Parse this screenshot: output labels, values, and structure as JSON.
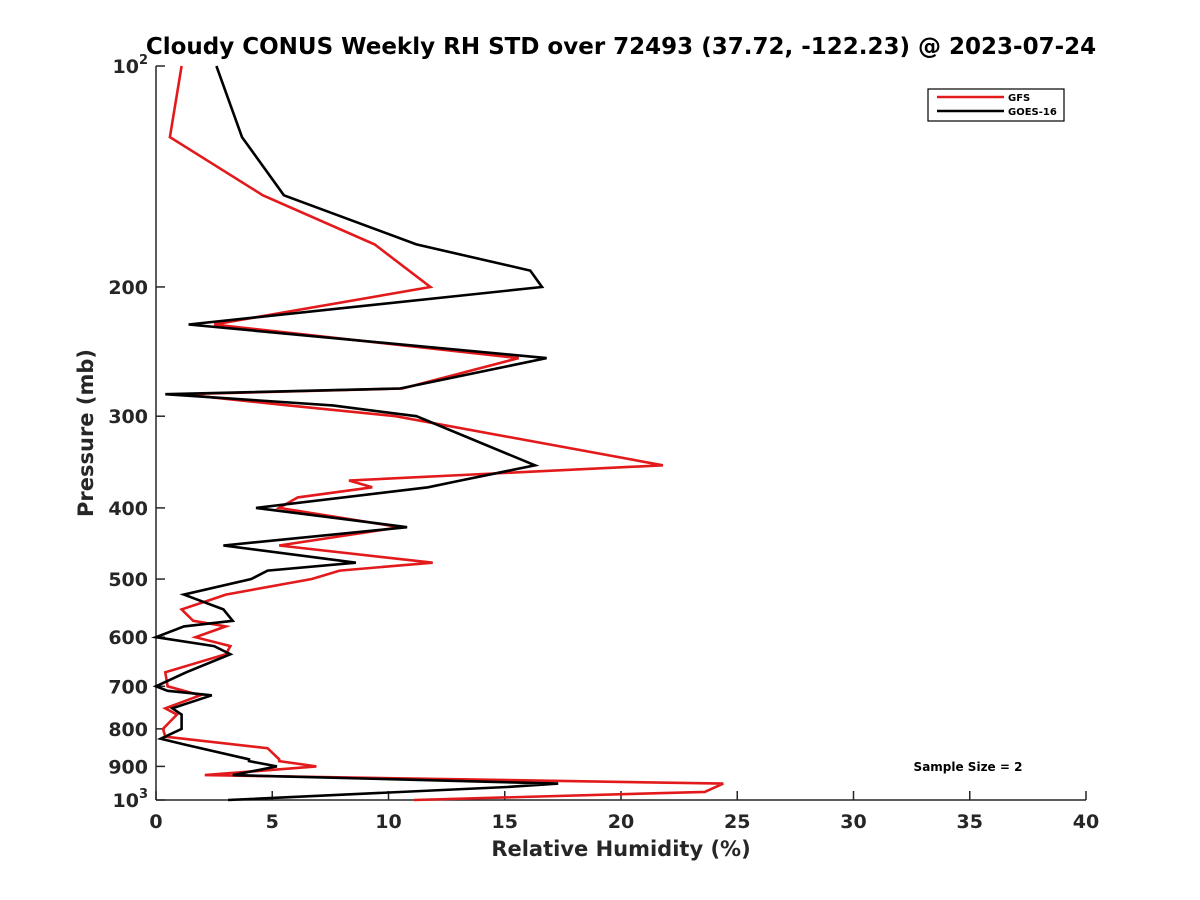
{
  "chart_data": {
    "type": "line",
    "title": "Cloudy CONUS Weekly RH STD over 72493 (37.72, -122.23) @ 2023-07-24",
    "xlabel": "Relative Humidity (%)",
    "ylabel": "Pressure (mb)",
    "xlim": [
      0,
      40
    ],
    "ylim": [
      100,
      1000
    ],
    "yscale": "log",
    "y_reversed": true,
    "grid": false,
    "legend_position": "top-right",
    "x_ticks": [
      "0",
      "5",
      "10",
      "15",
      "20",
      "25",
      "30",
      "35",
      "40"
    ],
    "y_ticks": [
      {
        "value": 100,
        "base": "10",
        "exp": "2"
      },
      {
        "value": 200,
        "label": "200"
      },
      {
        "value": 300,
        "label": "300"
      },
      {
        "value": 400,
        "label": "400"
      },
      {
        "value": 500,
        "label": "500"
      },
      {
        "value": 600,
        "label": "600"
      },
      {
        "value": 700,
        "label": "700"
      },
      {
        "value": 800,
        "label": "800"
      },
      {
        "value": 900,
        "label": "900"
      },
      {
        "value": 1000,
        "base": "10",
        "exp": "3"
      }
    ],
    "annotation": "Sample Size = 2",
    "series": [
      {
        "name": "GFS",
        "color": "#e31a1c",
        "points": [
          [
            1.1,
            100
          ],
          [
            0.6,
            125
          ],
          [
            4.6,
            150
          ],
          [
            9.4,
            175
          ],
          [
            11.8,
            200
          ],
          [
            2.5,
            225
          ],
          [
            15.6,
            250
          ],
          [
            10.6,
            275
          ],
          [
            1.1,
            280
          ],
          [
            5.7,
            290
          ],
          [
            10.3,
            300
          ],
          [
            21.8,
            350
          ],
          [
            8.3,
            367
          ],
          [
            9.3,
            375
          ],
          [
            6.1,
            387
          ],
          [
            5.3,
            400
          ],
          [
            10.5,
            425
          ],
          [
            5.3,
            450
          ],
          [
            11.9,
            475
          ],
          [
            7.9,
            487
          ],
          [
            6.7,
            500
          ],
          [
            3.0,
            525
          ],
          [
            2.4,
            533
          ],
          [
            1.1,
            550
          ],
          [
            1.6,
            570
          ],
          [
            3.0,
            580
          ],
          [
            1.7,
            600
          ],
          [
            3.2,
            617
          ],
          [
            3.0,
            633
          ],
          [
            0.4,
            670
          ],
          [
            0.5,
            700
          ],
          [
            1.9,
            720
          ],
          [
            0.4,
            750
          ],
          [
            0.9,
            765
          ],
          [
            0.3,
            800
          ],
          [
            0.4,
            820
          ],
          [
            4.8,
            850
          ],
          [
            5.3,
            880
          ],
          [
            5.3,
            885
          ],
          [
            6.9,
            900
          ],
          [
            2.1,
            925
          ],
          [
            24.4,
            950
          ],
          [
            23.6,
            975
          ],
          [
            11.1,
            1000
          ]
        ]
      },
      {
        "name": "GOES-16",
        "color": "#000000",
        "points": [
          [
            2.6,
            100
          ],
          [
            3.7,
            125
          ],
          [
            5.5,
            150
          ],
          [
            11.2,
            175
          ],
          [
            16.1,
            190
          ],
          [
            16.6,
            200
          ],
          [
            1.4,
            225
          ],
          [
            16.8,
            250
          ],
          [
            10.5,
            275
          ],
          [
            0.4,
            280
          ],
          [
            7.6,
            290
          ],
          [
            11.2,
            300
          ],
          [
            16.3,
            350
          ],
          [
            13.1,
            367
          ],
          [
            11.7,
            375
          ],
          [
            4.3,
            400
          ],
          [
            10.8,
            425
          ],
          [
            2.9,
            450
          ],
          [
            8.6,
            475
          ],
          [
            4.8,
            487
          ],
          [
            4.1,
            500
          ],
          [
            1.2,
            525
          ],
          [
            2.9,
            550
          ],
          [
            3.3,
            570
          ],
          [
            1.2,
            580
          ],
          [
            0.0,
            600
          ],
          [
            2.5,
            617
          ],
          [
            3.2,
            633
          ],
          [
            1.3,
            670
          ],
          [
            0.0,
            700
          ],
          [
            0.5,
            710
          ],
          [
            2.4,
            720
          ],
          [
            0.7,
            750
          ],
          [
            1.1,
            765
          ],
          [
            1.1,
            800
          ],
          [
            0.2,
            825
          ],
          [
            1.2,
            840
          ],
          [
            4.0,
            880
          ],
          [
            4.0,
            885
          ],
          [
            5.2,
            900
          ],
          [
            3.3,
            925
          ],
          [
            17.3,
            950
          ],
          [
            15.1,
            960
          ],
          [
            3.1,
            1000
          ]
        ]
      }
    ]
  }
}
